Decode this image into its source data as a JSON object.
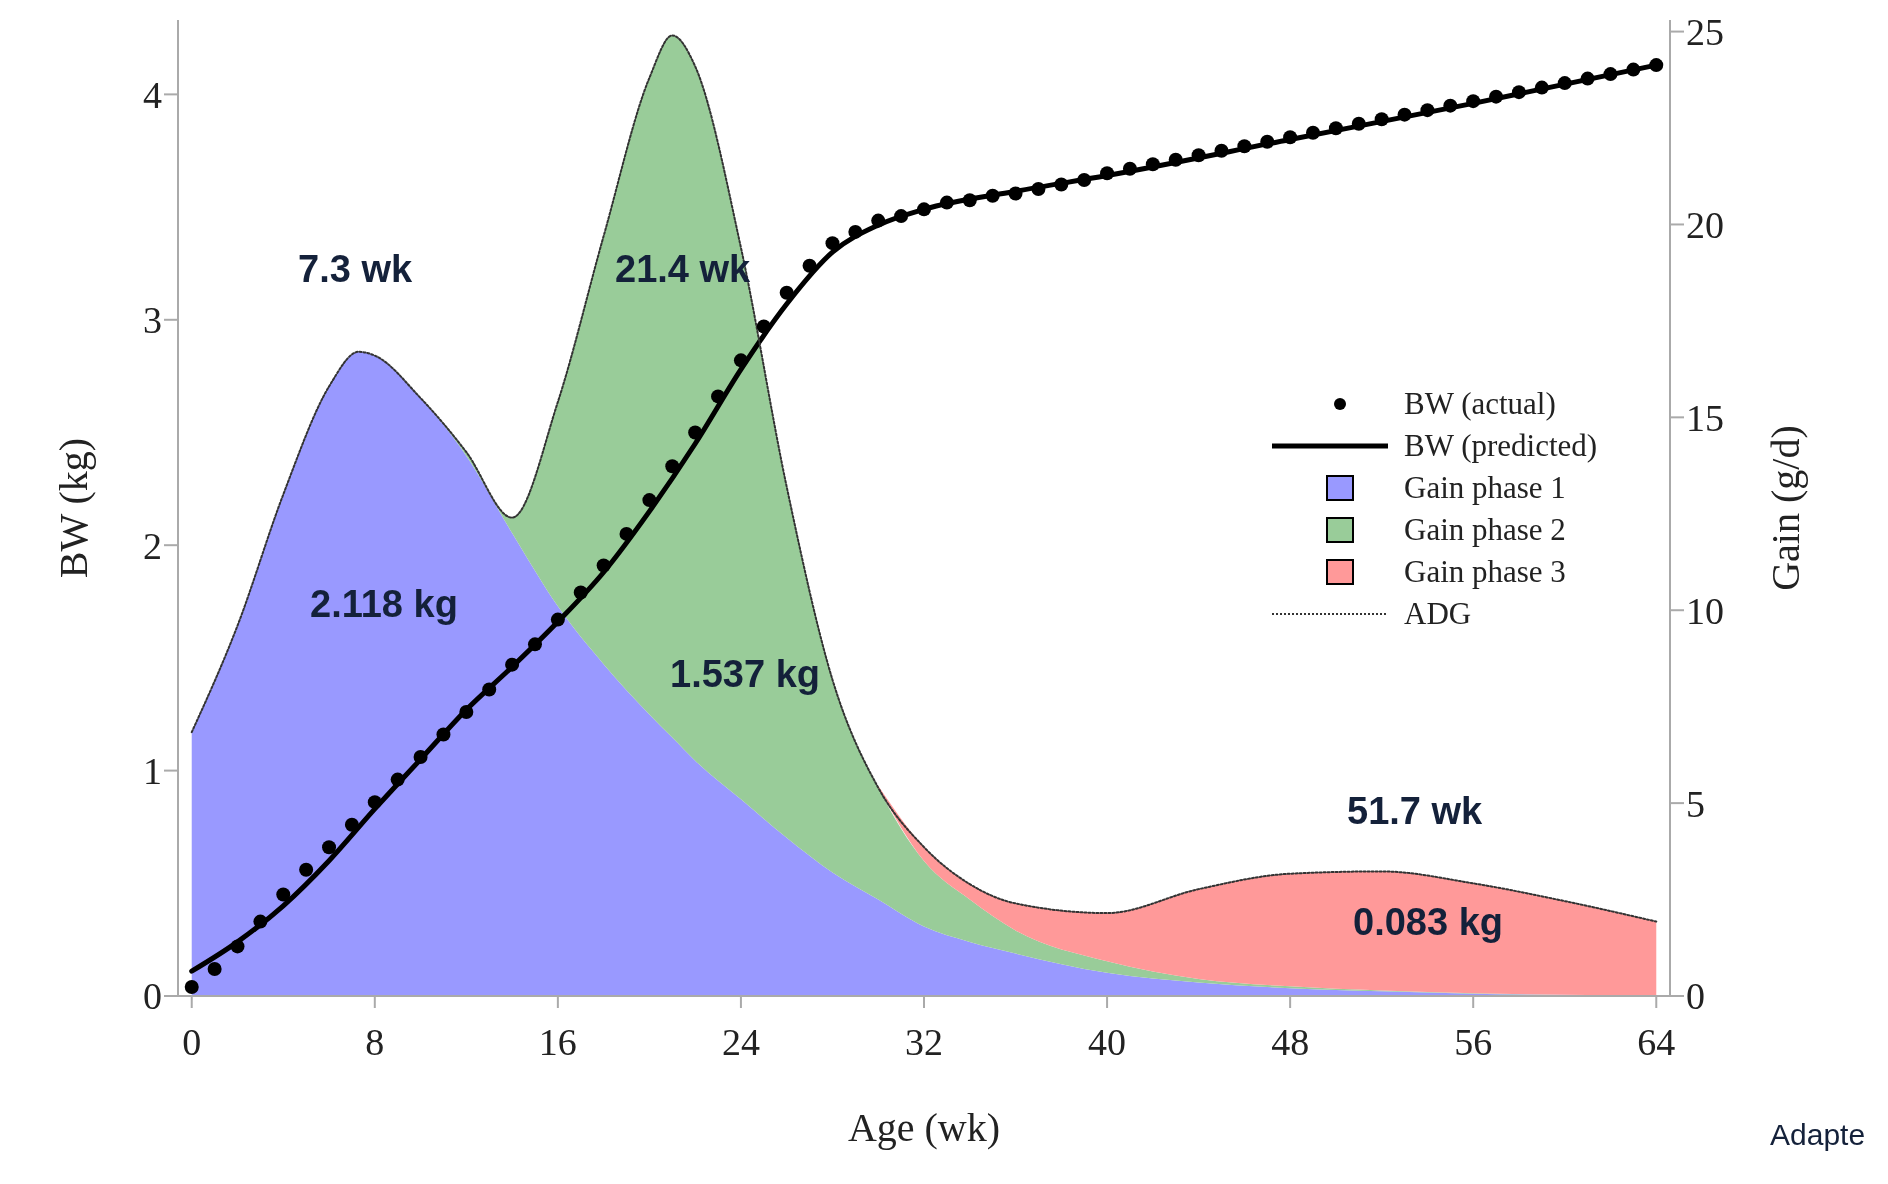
{
  "chart_data": {
    "type": "line",
    "xlabel": "Age (wk)",
    "ylabel": "BW (kg)",
    "y2label": "Gain (g/d)",
    "xlim": [
      -0.6,
      64.6
    ],
    "xticks": [
      0,
      8,
      16,
      24,
      32,
      40,
      48,
      56,
      64
    ],
    "ylim": [
      0,
      4.33
    ],
    "yticks": [
      0,
      1,
      2,
      3,
      4
    ],
    "y2lim": [
      0,
      25.3
    ],
    "y2ticks": [
      0,
      5,
      10,
      15,
      20,
      25
    ],
    "stacked": true,
    "grid": false,
    "legend": "right",
    "x": [
      0,
      2,
      4,
      6,
      7.3,
      8,
      10,
      12,
      14,
      16,
      18,
      20,
      21,
      22,
      24,
      26,
      28,
      30,
      32,
      34,
      36,
      40,
      44,
      48,
      52,
      56,
      60,
      64
    ],
    "series": [
      {
        "name": "BW (actual)",
        "type": "scatter",
        "marker": "circle",
        "color": "#000000",
        "x": [
          0,
          1,
          2,
          3,
          4,
          5,
          6,
          7,
          8,
          9,
          10,
          11,
          12,
          13,
          14,
          15,
          16,
          17,
          18,
          19,
          20,
          21,
          22,
          23,
          24,
          25,
          26,
          27,
          28,
          29,
          30,
          31,
          32,
          33,
          34,
          35,
          36,
          37,
          38,
          39,
          40,
          41,
          42,
          43,
          44,
          45,
          46,
          47,
          48,
          49,
          50,
          51,
          52,
          53,
          54,
          55,
          56,
          57,
          58,
          59,
          60,
          61,
          62,
          63,
          64
        ],
        "values": [
          0.04,
          0.12,
          0.22,
          0.33,
          0.45,
          0.56,
          0.66,
          0.76,
          0.86,
          0.96,
          1.06,
          1.16,
          1.26,
          1.36,
          1.47,
          1.56,
          1.67,
          1.79,
          1.91,
          2.05,
          2.2,
          2.35,
          2.5,
          2.66,
          2.82,
          2.97,
          3.12,
          3.24,
          3.34,
          3.39,
          3.44,
          3.46,
          3.49,
          3.52,
          3.53,
          3.55,
          3.56,
          3.58,
          3.6,
          3.62,
          3.65,
          3.67,
          3.69,
          3.71,
          3.73,
          3.75,
          3.77,
          3.79,
          3.81,
          3.83,
          3.85,
          3.87,
          3.89,
          3.91,
          3.93,
          3.95,
          3.97,
          3.99,
          4.01,
          4.03,
          4.05,
          4.07,
          4.09,
          4.11,
          4.13
        ]
      },
      {
        "name": "BW (predicted)",
        "marker": "none",
        "line_style": "solid",
        "color": "#000000",
        "x": [
          0,
          2,
          4,
          6,
          8,
          10,
          12,
          14,
          16,
          18,
          20,
          22,
          24,
          26,
          28,
          30,
          32,
          36,
          40,
          48,
          56,
          64
        ],
        "values": [
          0.11,
          0.24,
          0.4,
          0.6,
          0.83,
          1.05,
          1.27,
          1.46,
          1.66,
          1.88,
          2.15,
          2.45,
          2.78,
          3.07,
          3.3,
          3.42,
          3.49,
          3.57,
          3.64,
          3.8,
          3.96,
          4.13
        ]
      },
      {
        "name": "Gain phase 1",
        "type": "area",
        "axis": "y2",
        "color": "#9999ff",
        "values": [
          6.84,
          9.6,
          13.0,
          15.8,
          16.7,
          16.6,
          15.5,
          14.0,
          12.0,
          10.1,
          8.6,
          7.3,
          6.7,
          6.1,
          5.1,
          4.1,
          3.2,
          2.5,
          1.8,
          1.4,
          1.1,
          0.6,
          0.35,
          0.2,
          0.12,
          0.06,
          0.03,
          0
        ]
      },
      {
        "name": "Gain phase 2",
        "type": "area",
        "axis": "y2",
        "color": "#99cc99",
        "values": [
          0,
          0,
          0,
          0,
          0,
          0,
          0,
          0.1,
          0.4,
          5.3,
          11.1,
          16.5,
          18.2,
          18.0,
          14.3,
          9.1,
          5.0,
          2.9,
          1.7,
          1.1,
          0.6,
          0.3,
          0.09,
          0.05,
          0.02,
          0.01,
          0,
          0
        ]
      },
      {
        "name": "Gain phase 3",
        "type": "area",
        "axis": "y2",
        "color": "#ff9999",
        "values": [
          null,
          null,
          null,
          null,
          null,
          null,
          null,
          null,
          null,
          null,
          null,
          null,
          null,
          null,
          null,
          null,
          null,
          0.05,
          0.36,
          0.4,
          0.7,
          1.25,
          2.33,
          2.92,
          3.09,
          2.85,
          2.43,
          1.93
        ]
      },
      {
        "name": "ADG",
        "type": "line",
        "axis": "y2",
        "marker": "none",
        "line_style": "dotted",
        "color": "#333333",
        "values": [
          6.84,
          9.6,
          13.0,
          15.8,
          16.7,
          16.6,
          15.5,
          14.1,
          12.4,
          15.4,
          19.7,
          23.8,
          24.9,
          24.1,
          19.4,
          13.2,
          8.2,
          5.4,
          3.86,
          2.9,
          2.4,
          2.15,
          2.77,
          3.17,
          3.23,
          2.92,
          2.46,
          1.93
        ]
      }
    ],
    "annotations": [
      "7.3 wk",
      "21.4 wk",
      "51.7 wk",
      "2.118 kg",
      "1.537 kg",
      "0.083 kg",
      "Adapte"
    ]
  }
}
